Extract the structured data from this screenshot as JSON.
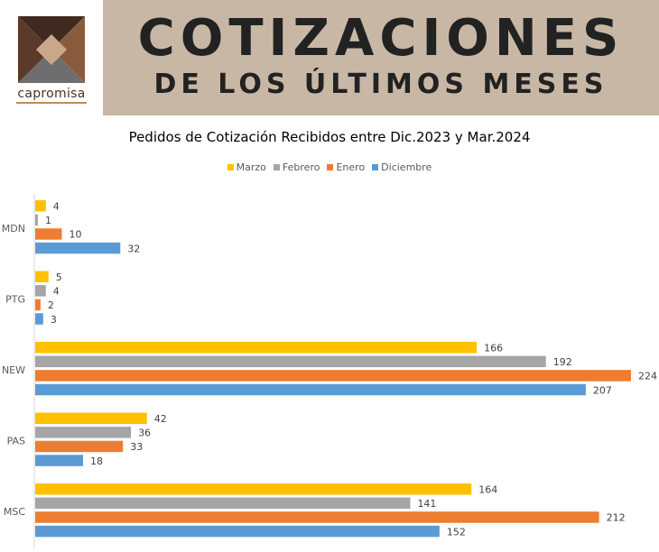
{
  "brand": {
    "name": "capromisa",
    "colors": {
      "dark": "#3f2a20",
      "mid": "#8a5a3c",
      "light": "#c9a78b",
      "grey": "#7a7a7a"
    }
  },
  "header": {
    "line1": "COTIZACIONES",
    "line2": "DE LOS ÚLTIMOS MESES",
    "background": "#c9b7a6"
  },
  "chart_data": {
    "type": "bar",
    "orientation": "horizontal",
    "title": "Pedidos de Cotización Recibidos entre Dic.2023 y Mar.2024",
    "categories": [
      "MDN",
      "PTG",
      "NEW",
      "PAS",
      "MSC"
    ],
    "series": [
      {
        "name": "Marzo",
        "color": "#ffc000",
        "values": [
          4,
          5,
          166,
          42,
          164
        ]
      },
      {
        "name": "Febrero",
        "color": "#a5a5a5",
        "values": [
          1,
          4,
          192,
          36,
          141
        ]
      },
      {
        "name": "Enero",
        "color": "#ed7d31",
        "values": [
          10,
          2,
          224,
          33,
          212
        ]
      },
      {
        "name": "Diciembre",
        "color": "#5b9bd5",
        "values": [
          32,
          3,
          207,
          18,
          152
        ]
      }
    ],
    "xlim": [
      0,
      224
    ],
    "grid": false,
    "data_labels": true,
    "legend_position": "top"
  }
}
